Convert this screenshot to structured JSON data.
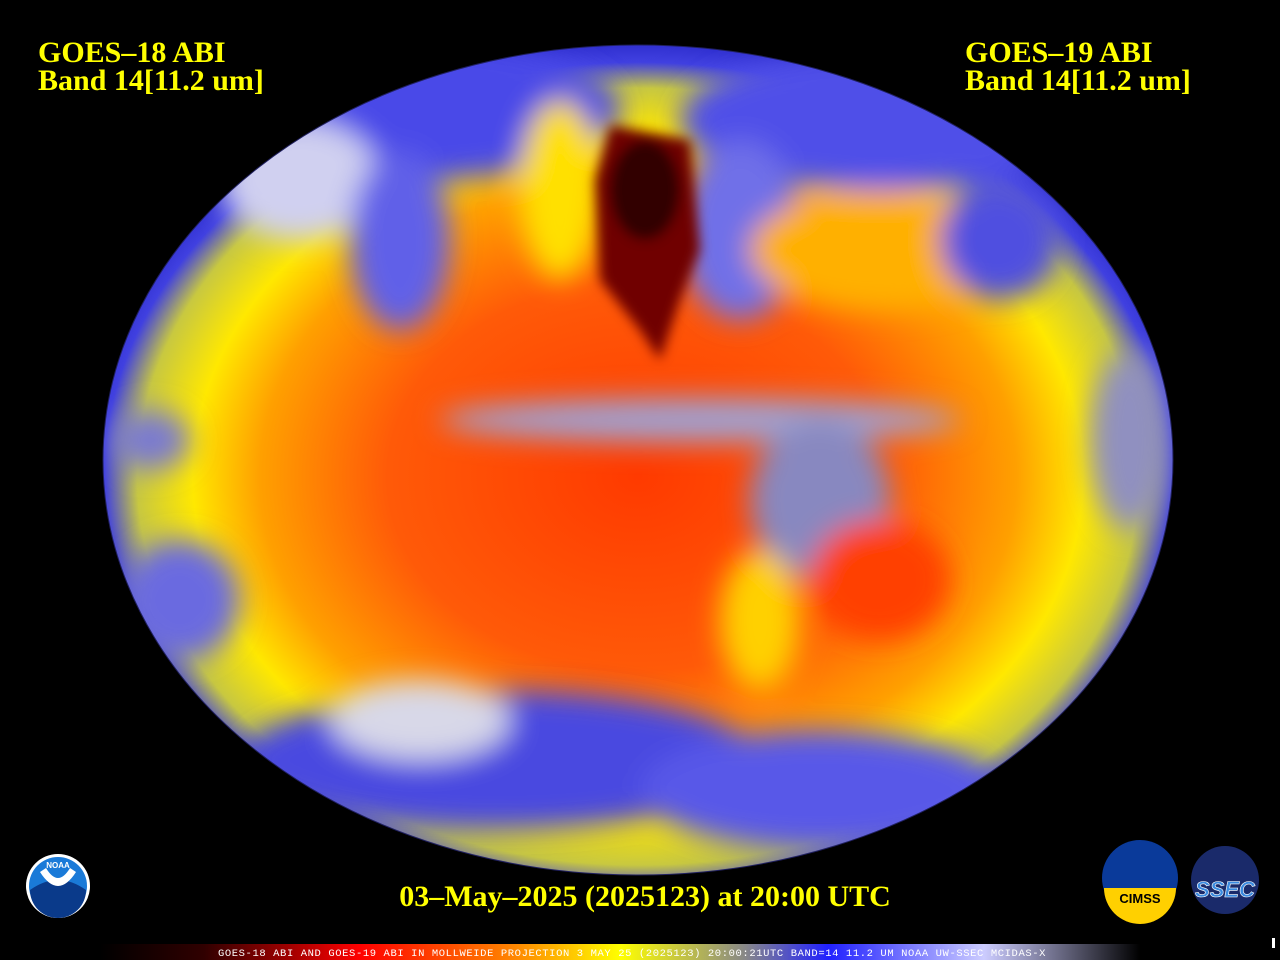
{
  "header": {
    "left": {
      "satellite": "GOES–18 ABI",
      "band": "Band 14[11.2 um]"
    },
    "right": {
      "satellite": "GOES–19 ABI",
      "band": "Band 14[11.2 um]"
    }
  },
  "footer": {
    "date_line": "03–May–2025 (2025123) at 20:00 UTC",
    "caption": "GOES-18 ABI AND GOES-19 ABI IN MOLLWEIDE PROJECTION 3 MAY 25 (2025123) 20:00:21UTC BAND=14 11.2 UM NOAA UW-SSEC MCIDAS-X"
  },
  "logos": {
    "noaa": "NOAA",
    "cimss": "CIMSS",
    "ssec": "SSEC"
  }
}
